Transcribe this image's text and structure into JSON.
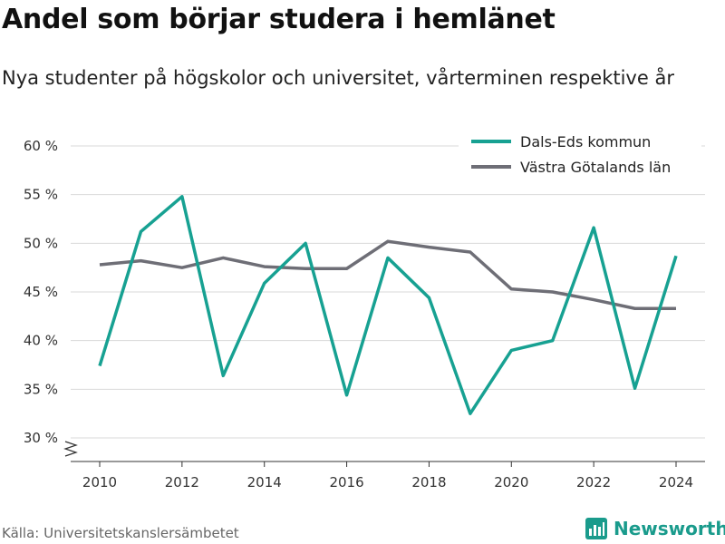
{
  "title": "Andel som börjar studera i hemlänet",
  "subtitle": "Nya studenter på högskolor och universitet, vårterminen respektive år",
  "source": "Källa: Universitetskanslersämbetet",
  "brand": {
    "name": "Newsworthy",
    "color": "#1a9b8c"
  },
  "chart_data": {
    "type": "line",
    "x": [
      2010,
      2011,
      2012,
      2013,
      2014,
      2015,
      2016,
      2017,
      2018,
      2019,
      2020,
      2021,
      2022,
      2023,
      2024
    ],
    "x_tick_labels": [
      "2010",
      "2012",
      "2014",
      "2016",
      "2018",
      "2020",
      "2022",
      "2024"
    ],
    "x_ticks": [
      2010,
      2012,
      2014,
      2016,
      2018,
      2020,
      2022,
      2024
    ],
    "y_ticks": [
      30,
      35,
      40,
      45,
      50,
      55,
      60
    ],
    "y_tick_labels": [
      "30 %",
      "35 %",
      "40 %",
      "45 %",
      "50 %",
      "55 %",
      "60 %"
    ],
    "ylim": [
      30,
      60
    ],
    "axis_break": true,
    "grid": true,
    "legend_position": "top-right",
    "series": [
      {
        "name": "Dals-Eds kommun",
        "color": "#17a192",
        "values": [
          37.4,
          51.2,
          54.8,
          36.4,
          45.9,
          50.0,
          34.4,
          48.5,
          44.4,
          32.5,
          39.0,
          40.0,
          51.6,
          35.1,
          48.7
        ]
      },
      {
        "name": "Västra Götalands län",
        "color": "#6e6e76",
        "values": [
          47.8,
          48.2,
          47.5,
          48.5,
          47.6,
          47.4,
          47.4,
          50.2,
          49.6,
          49.1,
          45.3,
          45.0,
          44.2,
          43.3,
          43.3
        ]
      }
    ]
  }
}
